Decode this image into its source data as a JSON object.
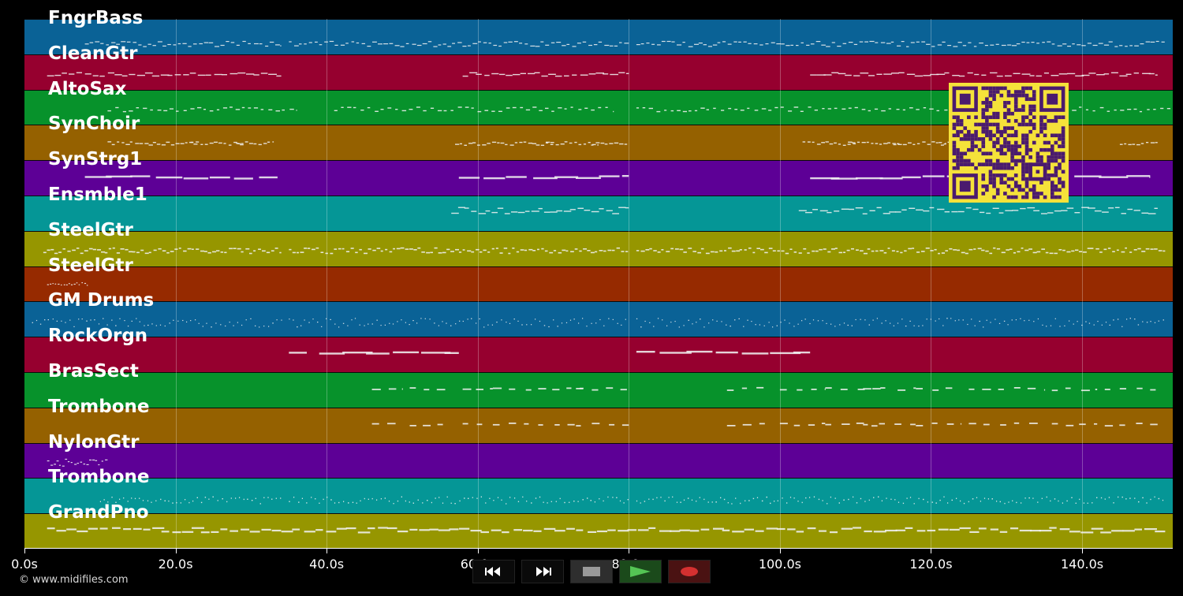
{
  "tracks": [
    {
      "name": "FngrBass",
      "color": "#0a6296",
      "pattern": "dense"
    },
    {
      "name": "CleanGtr",
      "color": "#96002f",
      "pattern": "sections"
    },
    {
      "name": "AltoSax",
      "color": "#07922b",
      "pattern": "sparse"
    },
    {
      "name": "SynChoir",
      "color": "#956100",
      "pattern": "phrases"
    },
    {
      "name": "SynStrg1",
      "color": "#5d0096",
      "pattern": "long"
    },
    {
      "name": "Ensmble1",
      "color": "#059696",
      "pattern": "sections2"
    },
    {
      "name": "SteelGtr",
      "color": "#969600",
      "pattern": "thick"
    },
    {
      "name": "SteelGtr",
      "color": "#962a00",
      "pattern": "intro"
    },
    {
      "name": "GM Drums",
      "color": "#0a6296",
      "pattern": "dots"
    },
    {
      "name": "RockOrgn",
      "color": "#96002f",
      "pattern": "organ"
    },
    {
      "name": "BrasSect",
      "color": "#07922b",
      "pattern": "hits"
    },
    {
      "name": "Trombone",
      "color": "#956100",
      "pattern": "hits"
    },
    {
      "name": "NylonGtr",
      "color": "#5d0096",
      "pattern": "intro2"
    },
    {
      "name": "Trombone",
      "color": "#059696",
      "pattern": "dots2"
    },
    {
      "name": "GrandPno",
      "color": "#969600",
      "pattern": "piano"
    }
  ],
  "time_axis": {
    "min_seconds": 0,
    "max_seconds": 152,
    "ticks": [
      0,
      20,
      40,
      60,
      80,
      100,
      120,
      140
    ],
    "tick_labels": [
      "0.0s",
      "20.0s",
      "40.0s",
      "60.0s",
      "80.0s",
      "100.0s",
      "120.0s",
      "140.0s"
    ]
  },
  "copyright": "© www.midifiles.com",
  "controls": {
    "rewind": "rewind",
    "fast_forward": "fast-forward",
    "stop": "stop",
    "play": "play",
    "record": "record"
  },
  "colors": {
    "background": "#000000",
    "qr_background": "#f5e23a",
    "qr_foreground": "#4a1a6e",
    "play": "#2a8a2a",
    "record": "#d43030"
  },
  "icons": {
    "rewind": "rewind-icon",
    "fast_forward": "fast-forward-icon",
    "stop": "stop-icon",
    "play": "play-icon",
    "record": "record-icon",
    "qr": "qr-code-icon"
  }
}
